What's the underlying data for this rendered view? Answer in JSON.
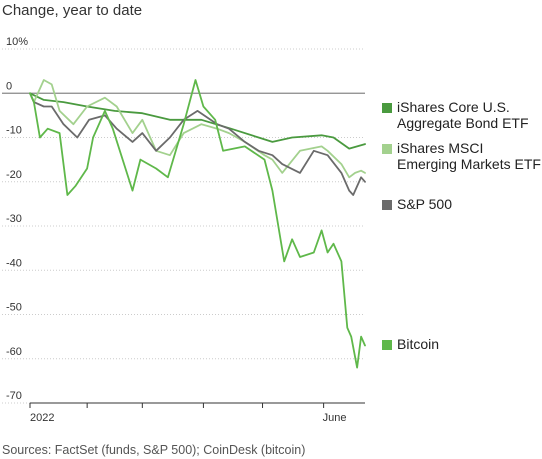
{
  "chart_data": {
    "type": "line",
    "title": "Change, year to date",
    "source": "Sources: FactSet (funds, S&P 500); CoinDesk (bitcoin)",
    "x_ticks": [
      "2022",
      "June"
    ],
    "y_ticks": [
      "10%",
      "0",
      "-10",
      "-20",
      "-30",
      "-40",
      "-50",
      "-60",
      "-70"
    ],
    "ylim": [
      -70,
      10
    ],
    "xlim": [
      "2022-01-03",
      "2022-06-22"
    ],
    "grid": true,
    "legend_position": "right",
    "series": [
      {
        "name": "iShares Core U.S. Aggregate Bond ETF",
        "color": "#4a9a3f",
        "points": [
          [
            "2022-01-03",
            0
          ],
          [
            "2022-01-10",
            -1.5
          ],
          [
            "2022-01-20",
            -2
          ],
          [
            "2022-02-01",
            -3
          ],
          [
            "2022-02-15",
            -4
          ],
          [
            "2022-03-01",
            -4.5
          ],
          [
            "2022-03-15",
            -6
          ],
          [
            "2022-03-31",
            -6
          ],
          [
            "2022-04-15",
            -8
          ],
          [
            "2022-04-29",
            -10
          ],
          [
            "2022-05-06",
            -11
          ],
          [
            "2022-05-16",
            -10
          ],
          [
            "2022-05-31",
            -9.5
          ],
          [
            "2022-06-06",
            -10
          ],
          [
            "2022-06-14",
            -12.5
          ],
          [
            "2022-06-22",
            -11.5
          ]
        ]
      },
      {
        "name": "iShares MSCI Emerging Markets ETF",
        "color": "#a3d18e",
        "points": [
          [
            "2022-01-03",
            0
          ],
          [
            "2022-01-05",
            -2
          ],
          [
            "2022-01-10",
            3
          ],
          [
            "2022-01-14",
            2
          ],
          [
            "2022-01-18",
            -4
          ],
          [
            "2022-01-25",
            -7
          ],
          [
            "2022-02-01",
            -3
          ],
          [
            "2022-02-10",
            -1
          ],
          [
            "2022-02-16",
            -3
          ],
          [
            "2022-02-24",
            -9
          ],
          [
            "2022-03-01",
            -6
          ],
          [
            "2022-03-08",
            -13
          ],
          [
            "2022-03-15",
            -14
          ],
          [
            "2022-03-22",
            -9
          ],
          [
            "2022-03-31",
            -7
          ],
          [
            "2022-04-08",
            -8
          ],
          [
            "2022-04-14",
            -9
          ],
          [
            "2022-04-22",
            -11
          ],
          [
            "2022-05-02",
            -14
          ],
          [
            "2022-05-06",
            -15
          ],
          [
            "2022-05-11",
            -18
          ],
          [
            "2022-05-20",
            -13
          ],
          [
            "2022-05-31",
            -12
          ],
          [
            "2022-06-03",
            -13
          ],
          [
            "2022-06-10",
            -16
          ],
          [
            "2022-06-14",
            -19
          ],
          [
            "2022-06-17",
            -18
          ],
          [
            "2022-06-20",
            -17.5
          ],
          [
            "2022-06-22",
            -18
          ]
        ]
      },
      {
        "name": "S&P 500",
        "color": "#6b6b6b",
        "points": [
          [
            "2022-01-03",
            0
          ],
          [
            "2022-01-05",
            -2
          ],
          [
            "2022-01-10",
            -3
          ],
          [
            "2022-01-14",
            -3
          ],
          [
            "2022-01-20",
            -7
          ],
          [
            "2022-01-27",
            -10
          ],
          [
            "2022-02-02",
            -6
          ],
          [
            "2022-02-10",
            -5
          ],
          [
            "2022-02-16",
            -8
          ],
          [
            "2022-02-24",
            -11
          ],
          [
            "2022-03-01",
            -9
          ],
          [
            "2022-03-08",
            -13
          ],
          [
            "2022-03-15",
            -10
          ],
          [
            "2022-03-22",
            -6
          ],
          [
            "2022-03-29",
            -4
          ],
          [
            "2022-04-08",
            -7
          ],
          [
            "2022-04-14",
            -8
          ],
          [
            "2022-04-22",
            -11
          ],
          [
            "2022-04-29",
            -13
          ],
          [
            "2022-05-06",
            -14
          ],
          [
            "2022-05-11",
            -16
          ],
          [
            "2022-05-20",
            -18
          ],
          [
            "2022-05-27",
            -13
          ],
          [
            "2022-06-03",
            -14
          ],
          [
            "2022-06-10",
            -18
          ],
          [
            "2022-06-14",
            -22
          ],
          [
            "2022-06-16",
            -23
          ],
          [
            "2022-06-20",
            -19
          ],
          [
            "2022-06-22",
            -20
          ]
        ]
      },
      {
        "name": "Bitcoin",
        "color": "#5fb84a",
        "points": [
          [
            "2022-01-03",
            0
          ],
          [
            "2022-01-05",
            -2
          ],
          [
            "2022-01-08",
            -10
          ],
          [
            "2022-01-12",
            -8
          ],
          [
            "2022-01-18",
            -9
          ],
          [
            "2022-01-22",
            -23
          ],
          [
            "2022-01-26",
            -21
          ],
          [
            "2022-02-01",
            -17
          ],
          [
            "2022-02-04",
            -10
          ],
          [
            "2022-02-10",
            -4
          ],
          [
            "2022-02-14",
            -8
          ],
          [
            "2022-02-24",
            -22
          ],
          [
            "2022-02-28",
            -15
          ],
          [
            "2022-03-08",
            -17
          ],
          [
            "2022-03-14",
            -19
          ],
          [
            "2022-03-22",
            -7
          ],
          [
            "2022-03-25",
            -2
          ],
          [
            "2022-03-28",
            3
          ],
          [
            "2022-04-01",
            -3
          ],
          [
            "2022-04-07",
            -6
          ],
          [
            "2022-04-11",
            -13
          ],
          [
            "2022-04-22",
            -12
          ],
          [
            "2022-05-02",
            -15
          ],
          [
            "2022-05-06",
            -22
          ],
          [
            "2022-05-09",
            -30
          ],
          [
            "2022-05-12",
            -38
          ],
          [
            "2022-05-16",
            -33
          ],
          [
            "2022-05-20",
            -37
          ],
          [
            "2022-05-27",
            -36
          ],
          [
            "2022-05-31",
            -31
          ],
          [
            "2022-06-03",
            -36
          ],
          [
            "2022-06-06",
            -34
          ],
          [
            "2022-06-10",
            -38
          ],
          [
            "2022-06-13",
            -53
          ],
          [
            "2022-06-15",
            -55
          ],
          [
            "2022-06-18",
            -62
          ],
          [
            "2022-06-20",
            -55
          ],
          [
            "2022-06-22",
            -57
          ]
        ]
      }
    ]
  }
}
